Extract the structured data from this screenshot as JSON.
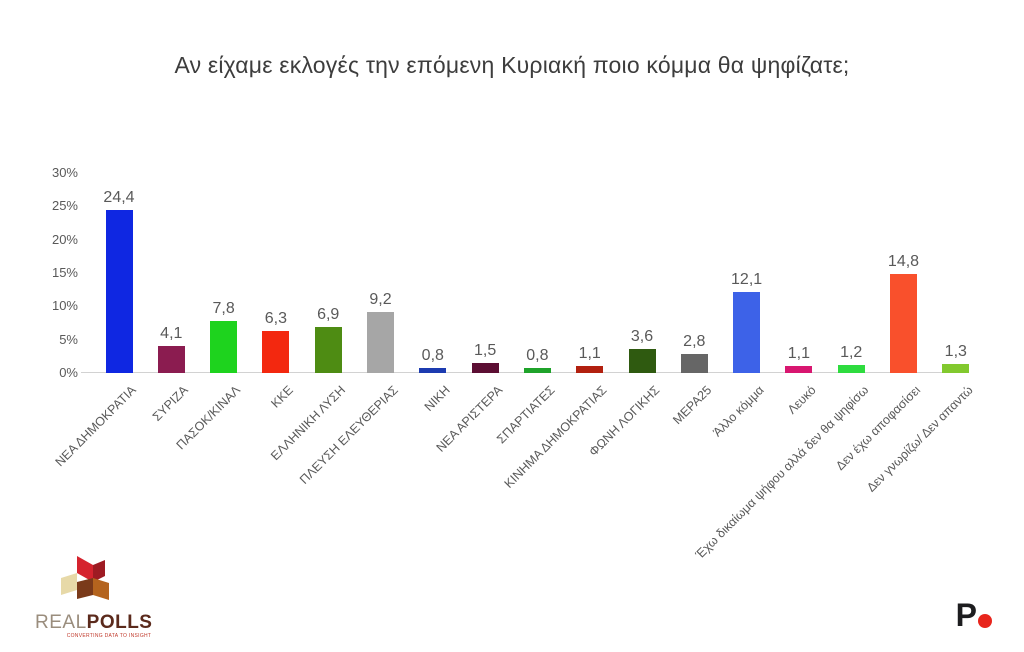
{
  "title": "Αν είχαμε εκλογές την επόμενη Κυριακή ποιο κόμμα θα ψηφίζατε;",
  "chart_data": {
    "type": "bar",
    "title": "Αν είχαμε εκλογές την επόμενη Κυριακή ποιο κόμμα θα ψηφίζατε;",
    "categories": [
      "ΝΕΑ ΔΗΜΟΚΡΑΤΙΑ",
      "ΣΥΡΙΖΑ",
      "ΠΑΣΟΚ/ΚΙΝΑΛ",
      "ΚΚΕ",
      "ΕΛΛΗΝΙΚΗ ΛΥΣΗ",
      "ΠΛΕΥΣΗ ΕΛΕΥΘΕΡΙΑΣ",
      "ΝΙΚΗ",
      "ΝΕΑ ΑΡΙΣΤΕΡΑ",
      "ΣΠΑΡΤΙΑΤΕΣ",
      "ΚΙΝΗΜΑ ΔΗΜΟΚΡΑΤΙΑΣ",
      "ΦΩΝΗ ΛΟΓΙΚΗΣ",
      "ΜΕΡΑ25",
      "Άλλο κόμμα",
      "Λευκό",
      "Έχω δικαίωμα ψήφου αλλά δεν θα ψηφίσω",
      "Δεν έχω αποφασίσει",
      "Δεν γνωρίζω/ Δεν απαντώ"
    ],
    "values": [
      24.4,
      4.1,
      7.8,
      6.3,
      6.9,
      9.2,
      0.8,
      1.5,
      0.8,
      1.1,
      3.6,
      2.8,
      12.1,
      1.1,
      1.2,
      14.8,
      1.3
    ],
    "value_labels": [
      "24,4",
      "4,1",
      "7,8",
      "6,3",
      "6,9",
      "9,2",
      "0,8",
      "1,5",
      "0,8",
      "1,1",
      "3,6",
      "2,8",
      "12,1",
      "1,1",
      "1,2",
      "14,8",
      "1,3"
    ],
    "bar_colors": [
      "#0f27e2",
      "#8b1c50",
      "#1ed31e",
      "#f3280f",
      "#4e8c13",
      "#a6a6a6",
      "#1c3bb0",
      "#5c0e33",
      "#1fa32a",
      "#b2200f",
      "#2f5a10",
      "#666666",
      "#3d62e8",
      "#d81670",
      "#2edc3f",
      "#f9502c",
      "#82c92e"
    ],
    "xlabel": "",
    "ylabel": "",
    "y_ticks": [
      "0%",
      "5%",
      "10%",
      "15%",
      "20%",
      "25%",
      "30%"
    ],
    "ylim": [
      0,
      30
    ],
    "grid": false,
    "legend": false
  },
  "footer": {
    "realpolls": {
      "real": "REAL",
      "polls": "POLLS",
      "tagline": "CONVERTING DATA TO INSIGHT",
      "cube_colors": {
        "red": "#d5232e",
        "dark_red": "#9e1b23",
        "cream": "#e7d9a8",
        "orange": "#b4641e",
        "brown": "#7a3a1a"
      }
    },
    "brand": {
      "letter": "P",
      "dot_color": "#e8251c"
    }
  }
}
